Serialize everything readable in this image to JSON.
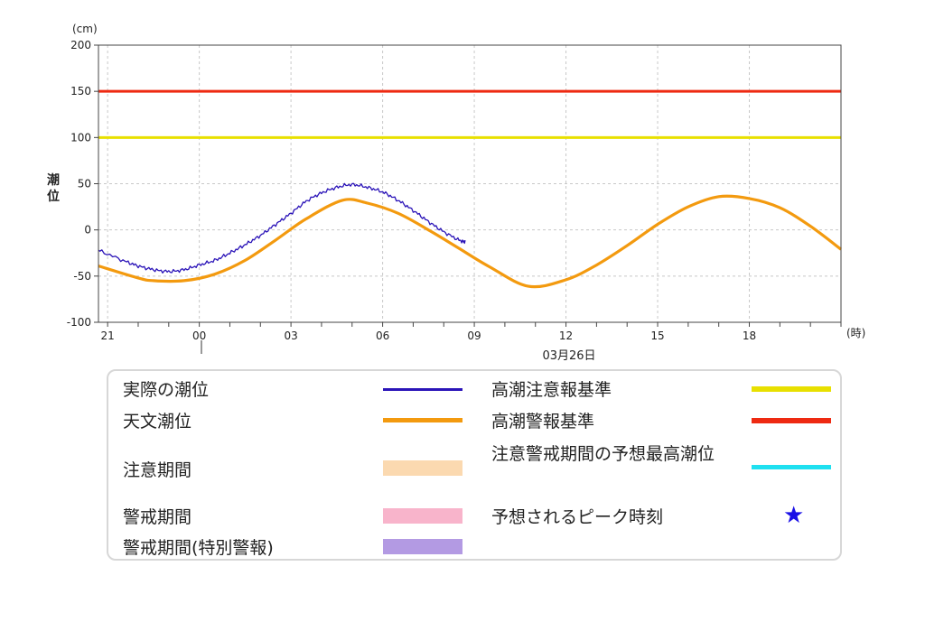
{
  "chart_data": {
    "type": "line",
    "title": "",
    "unit_label": "(cm)",
    "ylabel_chars": [
      "潮",
      "位"
    ],
    "x_unit_label": "(時)",
    "x_range_hours": [
      -3.3,
      21
    ],
    "ylim": [
      -100,
      200
    ],
    "y_ticks": [
      200,
      150,
      100,
      50,
      0,
      -50,
      -100
    ],
    "x_ticks": [
      {
        "h": -3,
        "label": "21"
      },
      {
        "h": 0,
        "label": "00"
      },
      {
        "h": 3,
        "label": "03"
      },
      {
        "h": 6,
        "label": "06"
      },
      {
        "h": 9,
        "label": "09"
      },
      {
        "h": 12,
        "label": "12"
      },
      {
        "h": 15,
        "label": "15"
      },
      {
        "h": 18,
        "label": "18"
      }
    ],
    "date_label": "03月26日",
    "grid": true,
    "reference_lines": [
      {
        "name": "高潮注意報基準",
        "value": 100,
        "color": "#e8e000"
      },
      {
        "name": "高潮警報基準",
        "value": 150,
        "color": "#ee2a12"
      }
    ],
    "series": [
      {
        "name": "天文潮位",
        "color": "#f39a0f",
        "x": [
          -3.3,
          -2,
          -1.5,
          -0.5,
          0.5,
          1.5,
          2.5,
          3.5,
          4.68,
          5.5,
          6.5,
          7.5,
          8.5,
          9.5,
          10.77,
          12,
          13,
          14,
          15,
          16,
          17,
          18,
          19,
          20,
          21
        ],
        "y": [
          -39,
          -52,
          -55,
          -55,
          -48,
          -33,
          -11,
          12,
          32,
          29,
          18,
          0,
          -20,
          -40,
          -61,
          -54,
          -38,
          -17,
          6,
          25,
          36,
          34,
          24,
          4,
          -21
        ]
      },
      {
        "name": "実際の潮位",
        "color": "#2b14b8",
        "x": [
          -3.3,
          -2.5,
          -2,
          -1.5,
          -1,
          -0.5,
          0,
          0.5,
          1,
          1.5,
          2,
          2.5,
          3,
          3.5,
          4,
          4.5,
          5,
          5.5,
          6,
          6.5,
          7,
          7.5,
          8,
          8.5,
          8.7
        ],
        "y": [
          -22,
          -33,
          -39,
          -43,
          -45,
          -43,
          -38,
          -33,
          -25,
          -16,
          -6,
          6,
          18,
          31,
          40,
          46,
          49,
          46,
          41,
          32,
          21,
          9,
          -2,
          -11,
          -13
        ]
      }
    ]
  },
  "legend": {
    "items": [
      {
        "label": "実際の潮位",
        "swatch": "line",
        "color": "#2b14b8"
      },
      {
        "label": "天文潮位",
        "swatch": "line",
        "color": "#f39a0f"
      },
      {
        "label": "注意期間",
        "swatch": "band",
        "color": "#fbd9b0"
      },
      {
        "label": "警戒期間",
        "swatch": "band",
        "color": "#f8b4cb"
      },
      {
        "label": "警戒期間(特別警報)",
        "swatch": "band",
        "color": "#b39ae3"
      },
      {
        "label": "高潮注意報基準",
        "swatch": "line",
        "color": "#e8e000"
      },
      {
        "label": "高潮警報基準",
        "swatch": "line",
        "color": "#ee2a12"
      },
      {
        "label": "注意警戒期間の予想最高潮位",
        "swatch": "line",
        "color": "#1fe0f0"
      },
      {
        "label": "予想されるピーク時刻",
        "swatch": "star",
        "color": "#1a10e6"
      }
    ]
  }
}
